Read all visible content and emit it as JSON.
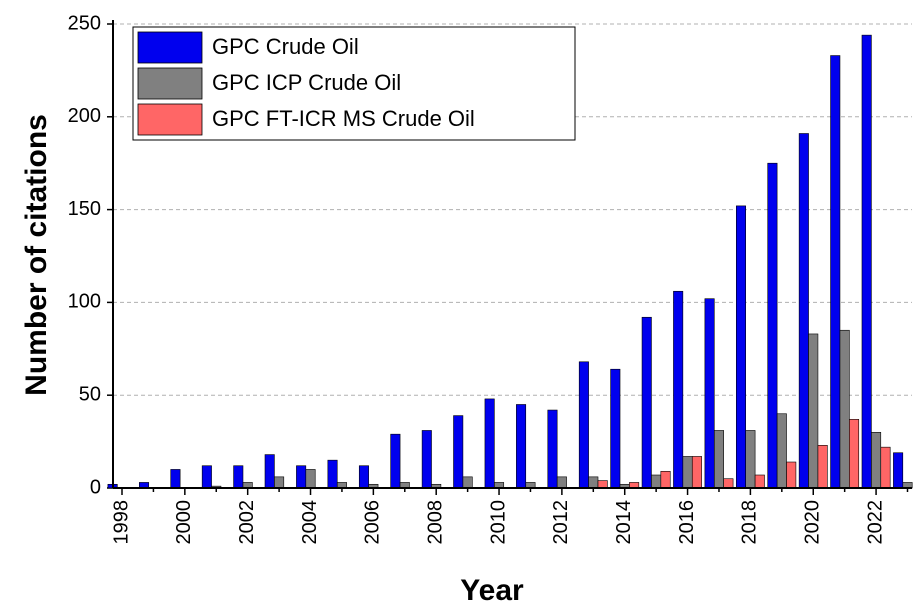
{
  "chart_data": {
    "type": "bar",
    "xlabel": "Year",
    "ylabel": "Number of citations",
    "categories": [
      "1998",
      null,
      "2000",
      null,
      "2002",
      null,
      "2004",
      null,
      "2006",
      null,
      "2008",
      null,
      "2010",
      null,
      "2012",
      null,
      "2014",
      null,
      "2016",
      null,
      "2018",
      null,
      "2020",
      null,
      "2022",
      null
    ],
    "series": [
      {
        "name": "GPC Crude Oil",
        "color": "#0000ee",
        "values": [
          2,
          3,
          10,
          12,
          12,
          18,
          12,
          15,
          12,
          29,
          31,
          39,
          48,
          45,
          42,
          68,
          64,
          92,
          106,
          102,
          152,
          175,
          191,
          233,
          244,
          19
        ]
      },
      {
        "name": "GPC ICP Crude Oil",
        "color": "#808080",
        "values": [
          0,
          0,
          0,
          1,
          3,
          6,
          10,
          3,
          2,
          3,
          2,
          6,
          3,
          3,
          6,
          6,
          2,
          7,
          17,
          31,
          31,
          40,
          83,
          85,
          30,
          3
        ]
      },
      {
        "name": "GPC FT-ICR MS Crude Oil",
        "color": "#ff6666",
        "values": [
          0,
          0,
          0,
          0,
          0,
          0,
          0,
          0,
          0,
          0,
          0,
          0,
          0,
          0,
          0,
          4,
          3,
          9,
          17,
          5,
          7,
          14,
          23,
          37,
          22,
          0
        ]
      }
    ],
    "ylim": [
      0,
      250
    ],
    "yticks": [
      0,
      50,
      100,
      150,
      200,
      250
    ],
    "grid": true,
    "legend": "upper left"
  }
}
